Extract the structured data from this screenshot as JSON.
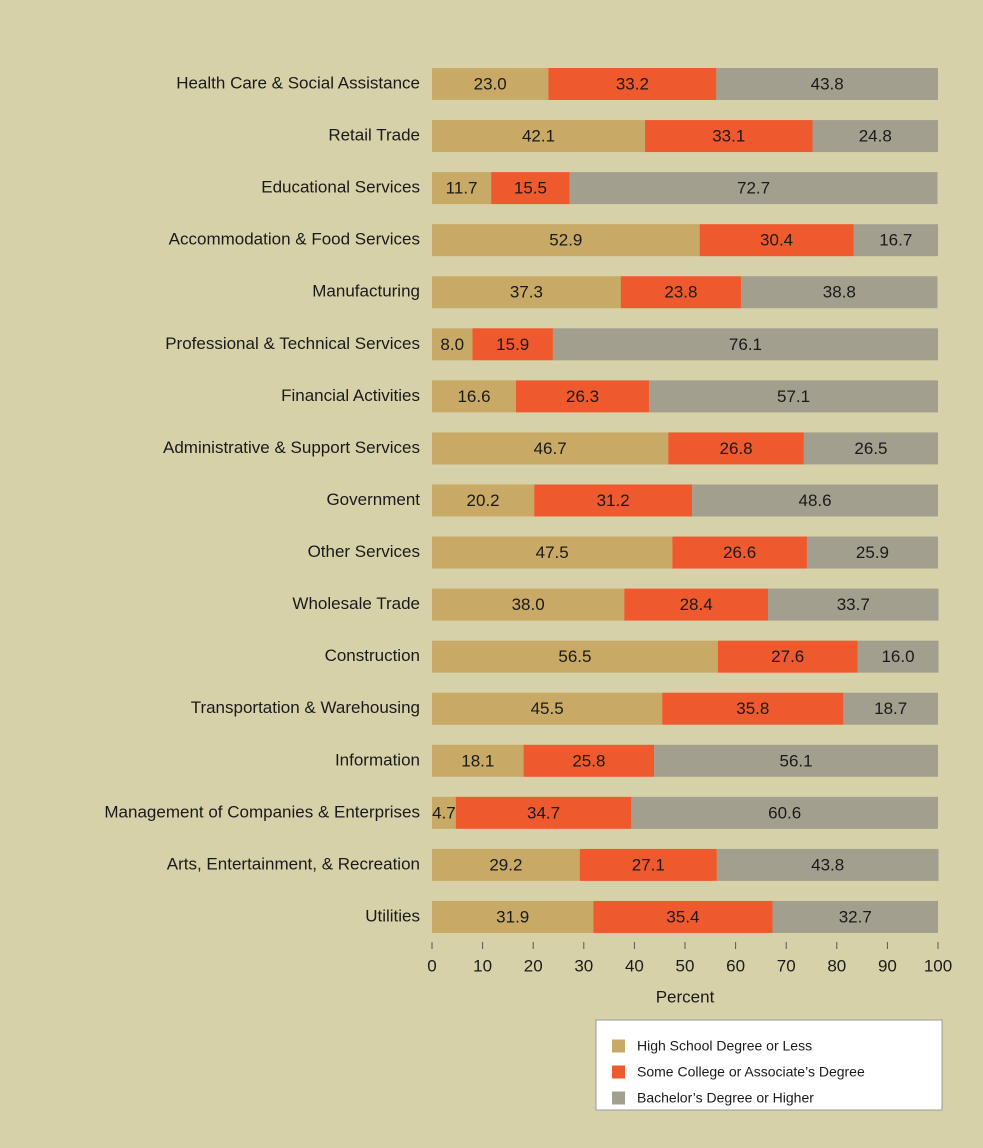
{
  "chart_data": {
    "type": "stacked-barh",
    "categories": [
      "Health Care & Social Assistance",
      "Retail Trade",
      "Educational Services",
      "Accommodation & Food Services",
      "Manufacturing",
      "Professional & Technical Services",
      "Financial Activities",
      "Administrative & Support Services",
      "Government",
      "Other Services",
      "Wholesale Trade",
      "Construction",
      "Transportation & Warehousing",
      "Information",
      "Management of Companies & Enterprises",
      "Arts, Entertainment, & Recreation",
      "Utilities"
    ],
    "series": [
      {
        "name": "High School Degree or Less",
        "color": "#c8aa66",
        "values": [
          23.0,
          42.1,
          11.7,
          52.9,
          37.3,
          8.0,
          16.6,
          46.7,
          20.2,
          47.5,
          38.0,
          56.5,
          45.5,
          18.1,
          4.7,
          29.2,
          31.9
        ],
        "value_labels": [
          "23.0",
          "42.1",
          "11.7",
          "52.9",
          "37.3",
          "8.0",
          "16.6",
          "46.7",
          "20.2",
          "47.5",
          "38.0",
          "56.5",
          "45.5",
          "18.1",
          "4.7",
          "29.2",
          "31.9"
        ]
      },
      {
        "name": "Some College or Associate’s Degree",
        "color": "#ee5a2e",
        "values": [
          33.2,
          33.1,
          15.5,
          30.4,
          23.8,
          15.9,
          26.3,
          26.8,
          31.2,
          26.6,
          28.4,
          27.6,
          35.8,
          25.8,
          34.7,
          27.1,
          35.4
        ],
        "value_labels": [
          "33.2",
          "33.1",
          "15.5",
          "30.4",
          "23.8",
          "15.9",
          "26.3",
          "26.8",
          "31.2",
          "26.6",
          "28.4",
          "27.6",
          "35.8",
          "25.8",
          "34.7",
          "27.1",
          "35.4"
        ]
      },
      {
        "name": "Bachelor’s Degree or Higher",
        "color": "#a39f8e",
        "values": [
          43.8,
          24.8,
          72.7,
          16.7,
          38.8,
          76.1,
          57.1,
          26.5,
          48.6,
          25.9,
          33.7,
          16.0,
          18.7,
          56.1,
          60.6,
          43.8,
          32.7
        ],
        "value_labels": [
          "43.8",
          "24.8",
          "72.7",
          "16.7",
          "38.8",
          "76.1",
          "57.1",
          "26.5",
          "48.6",
          "25.9",
          "33.7",
          "16.0",
          "18.7",
          "56.1",
          "60.6",
          "43.8",
          "32.7"
        ]
      }
    ],
    "xlabel": "Percent",
    "xlim": [
      0,
      100
    ],
    "xticks": [
      0,
      10,
      20,
      30,
      40,
      50,
      60,
      70,
      80,
      90,
      100
    ]
  }
}
